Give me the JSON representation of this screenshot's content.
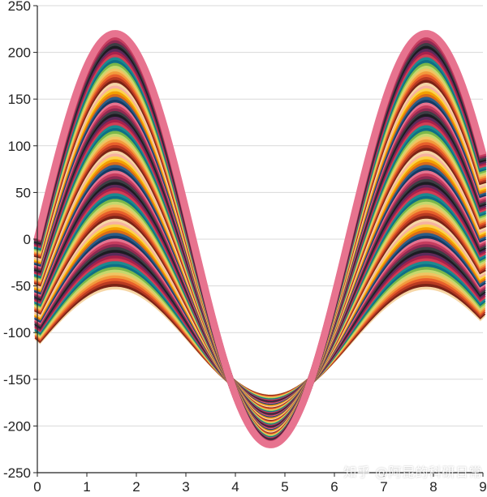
{
  "chart_data": {
    "type": "line",
    "title": "",
    "xlabel": "",
    "ylabel": "",
    "xlim": [
      0,
      9
    ],
    "ylim": [
      -250,
      250
    ],
    "x_ticks": [
      "0",
      "1",
      "2",
      "3",
      "4",
      "5",
      "6",
      "7",
      "8",
      "9"
    ],
    "y_ticks": [
      "250",
      "200",
      "150",
      "100",
      "50",
      "0",
      "-50",
      "-100",
      "-150",
      "-200",
      "-250"
    ],
    "grid": "horizontal",
    "legend": "none",
    "curves": {
      "function": "y = A * sin(x)",
      "x_range": [
        0,
        9
      ],
      "count": 90,
      "amplitude_range": [
        220,
        60
      ],
      "y_offset_range": [
        0,
        -110
      ]
    },
    "palette": [
      "#e7738f",
      "#c63d5f",
      "#8e2a52",
      "#3c3e44",
      "#1c1c22",
      "#5c2a5a",
      "#a8204b",
      "#d13f55",
      "#1b8a8f",
      "#0d6e86",
      "#7ab84a",
      "#c5d86d",
      "#f0c463",
      "#f39a3c",
      "#e85f2b",
      "#b83a22",
      "#7a2316",
      "#f6d6a6",
      "#f7b2a0",
      "#fbd34d",
      "#f4a000",
      "#d96b1a",
      "#2c5c87",
      "#143b63"
    ]
  },
  "watermark": "知乎 @阿昆的科研日常"
}
